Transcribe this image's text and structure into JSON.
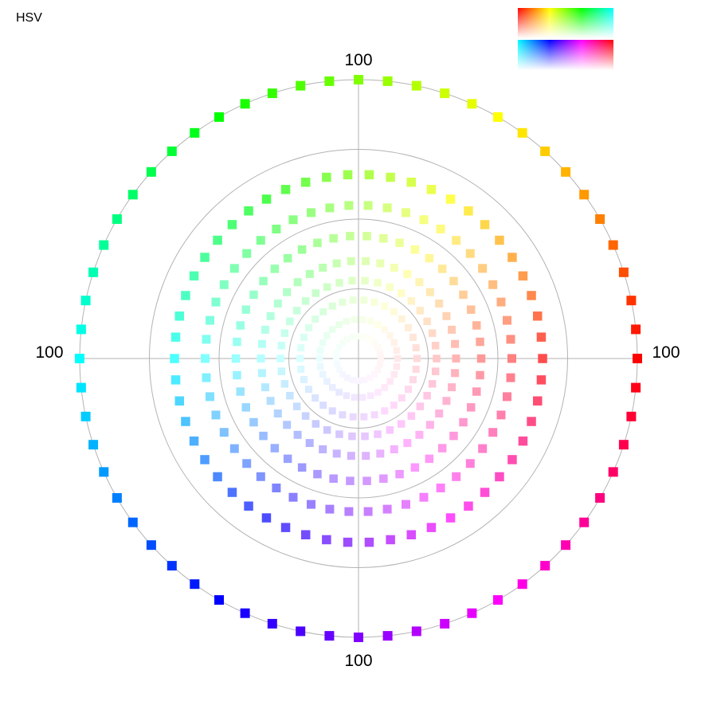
{
  "page": {
    "label": "HSV"
  },
  "legend": {
    "strip1_hues": [
      "#ff0000",
      "#ffff00",
      "#00ff00",
      "#00ffff"
    ],
    "strip2_hues": [
      "#00ffff",
      "#0000ff",
      "#ff00ff",
      "#ff0000"
    ]
  },
  "chart_data": {
    "type": "scatter",
    "projection": "polar",
    "marker": "square",
    "radial_max": 100,
    "axis_labels": {
      "top": "100",
      "left": "100",
      "right": "100",
      "bottom": "100"
    },
    "grid_rings": [
      25,
      50,
      75,
      100
    ],
    "grid": true,
    "series": [
      {
        "saturation": 100,
        "value": 100,
        "count": 60,
        "radius": 100
      },
      {
        "saturation": 70,
        "value": 100,
        "count": 54,
        "radius": 66
      },
      {
        "saturation": 50,
        "value": 100,
        "count": 50,
        "radius": 55
      },
      {
        "saturation": 40,
        "value": 100,
        "count": 46,
        "radius": 44
      },
      {
        "saturation": 30,
        "value": 100,
        "count": 42,
        "radius": 35
      },
      {
        "saturation": 22,
        "value": 100,
        "count": 38,
        "radius": 28
      },
      {
        "saturation": 15,
        "value": 100,
        "count": 34,
        "radius": 21
      },
      {
        "saturation": 9,
        "value": 100,
        "count": 30,
        "radius": 14
      },
      {
        "saturation": 4,
        "value": 100,
        "count": 24,
        "radius": 8
      }
    ]
  }
}
